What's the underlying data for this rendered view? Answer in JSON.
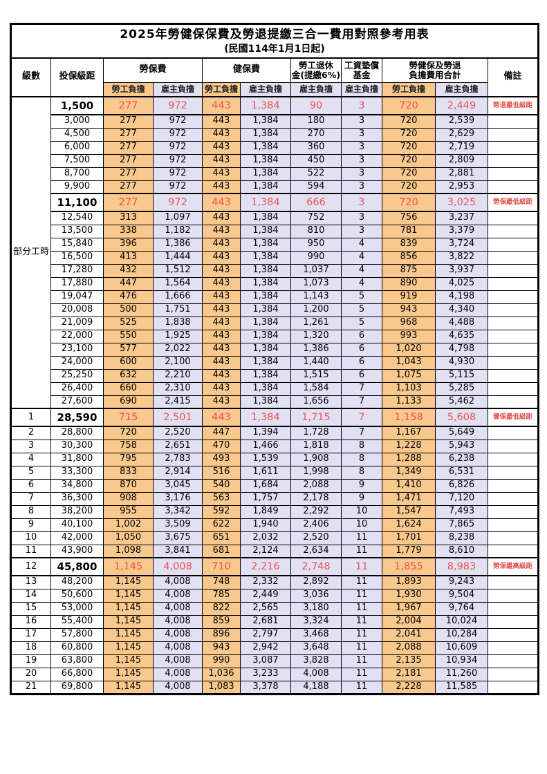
{
  "title": "2025年勞健保保費及勞退提繳三合一費用對照參考用表",
  "subtitle": "(民國114年1月1日起)",
  "columns": {
    "level": "級數",
    "salary": "投保級距",
    "labor_insurance": "勞保費",
    "health_insurance": "健保費",
    "pension_line1": "勞工退休",
    "pension_line2": "金(提繳6%)",
    "wage_fund_line1": "工資墊償",
    "wage_fund_line2": "基金",
    "total_line1": "勞健保及勞退",
    "total_line2": "負擔費用合計",
    "note": "備註",
    "employee_share": "勞工負擔",
    "employer_share": "雇主負擔"
  },
  "group_label": "部分工時",
  "colors": {
    "employee_bg": "#F8C88C",
    "employer_bg": "#E1E1F3",
    "highlight_text": "#EE5350",
    "note_text": "#E2524E"
  },
  "rows": [
    {
      "level": null,
      "salary": "1,500",
      "labor_emp": "277",
      "labor_er": "972",
      "health_emp": "443",
      "health_er": "1,384",
      "pension_er": "90",
      "fund_er": "3",
      "total_emp": "720",
      "total_er": "2,449",
      "note": "勞退最低級距",
      "highlight": true
    },
    {
      "level": null,
      "salary": "3,000",
      "labor_emp": "277",
      "labor_er": "972",
      "health_emp": "443",
      "health_er": "1,384",
      "pension_er": "180",
      "fund_er": "3",
      "total_emp": "720",
      "total_er": "2,539",
      "note": "",
      "highlight": false
    },
    {
      "level": null,
      "salary": "4,500",
      "labor_emp": "277",
      "labor_er": "972",
      "health_emp": "443",
      "health_er": "1,384",
      "pension_er": "270",
      "fund_er": "3",
      "total_emp": "720",
      "total_er": "2,629",
      "note": "",
      "highlight": false
    },
    {
      "level": null,
      "salary": "6,000",
      "labor_emp": "277",
      "labor_er": "972",
      "health_emp": "443",
      "health_er": "1,384",
      "pension_er": "360",
      "fund_er": "3",
      "total_emp": "720",
      "total_er": "2,719",
      "note": "",
      "highlight": false
    },
    {
      "level": null,
      "salary": "7,500",
      "labor_emp": "277",
      "labor_er": "972",
      "health_emp": "443",
      "health_er": "1,384",
      "pension_er": "450",
      "fund_er": "3",
      "total_emp": "720",
      "total_er": "2,809",
      "note": "",
      "highlight": false
    },
    {
      "level": null,
      "salary": "8,700",
      "labor_emp": "277",
      "labor_er": "972",
      "health_emp": "443",
      "health_er": "1,384",
      "pension_er": "522",
      "fund_er": "3",
      "total_emp": "720",
      "total_er": "2,881",
      "note": "",
      "highlight": false
    },
    {
      "level": null,
      "salary": "9,900",
      "labor_emp": "277",
      "labor_er": "972",
      "health_emp": "443",
      "health_er": "1,384",
      "pension_er": "594",
      "fund_er": "3",
      "total_emp": "720",
      "total_er": "2,953",
      "note": "",
      "highlight": false
    },
    {
      "level": null,
      "salary": "11,100",
      "labor_emp": "277",
      "labor_er": "972",
      "health_emp": "443",
      "health_er": "1,384",
      "pension_er": "666",
      "fund_er": "3",
      "total_emp": "720",
      "total_er": "3,025",
      "note": "勞保最低級距",
      "highlight": true
    },
    {
      "level": null,
      "salary": "12,540",
      "labor_emp": "313",
      "labor_er": "1,097",
      "health_emp": "443",
      "health_er": "1,384",
      "pension_er": "752",
      "fund_er": "3",
      "total_emp": "756",
      "total_er": "3,237",
      "note": "",
      "highlight": false
    },
    {
      "level": null,
      "salary": "13,500",
      "labor_emp": "338",
      "labor_er": "1,182",
      "health_emp": "443",
      "health_er": "1,384",
      "pension_er": "810",
      "fund_er": "3",
      "total_emp": "781",
      "total_er": "3,379",
      "note": "",
      "highlight": false
    },
    {
      "level": null,
      "salary": "15,840",
      "labor_emp": "396",
      "labor_er": "1,386",
      "health_emp": "443",
      "health_er": "1,384",
      "pension_er": "950",
      "fund_er": "4",
      "total_emp": "839",
      "total_er": "3,724",
      "note": "",
      "highlight": false
    },
    {
      "level": null,
      "salary": "16,500",
      "labor_emp": "413",
      "labor_er": "1,444",
      "health_emp": "443",
      "health_er": "1,384",
      "pension_er": "990",
      "fund_er": "4",
      "total_emp": "856",
      "total_er": "3,822",
      "note": "",
      "highlight": false
    },
    {
      "level": null,
      "salary": "17,280",
      "labor_emp": "432",
      "labor_er": "1,512",
      "health_emp": "443",
      "health_er": "1,384",
      "pension_er": "1,037",
      "fund_er": "4",
      "total_emp": "875",
      "total_er": "3,937",
      "note": "",
      "highlight": false
    },
    {
      "level": null,
      "salary": "17,880",
      "labor_emp": "447",
      "labor_er": "1,564",
      "health_emp": "443",
      "health_er": "1,384",
      "pension_er": "1,073",
      "fund_er": "4",
      "total_emp": "890",
      "total_er": "4,025",
      "note": "",
      "highlight": false
    },
    {
      "level": null,
      "salary": "19,047",
      "labor_emp": "476",
      "labor_er": "1,666",
      "health_emp": "443",
      "health_er": "1,384",
      "pension_er": "1,143",
      "fund_er": "5",
      "total_emp": "919",
      "total_er": "4,198",
      "note": "",
      "highlight": false
    },
    {
      "level": null,
      "salary": "20,008",
      "labor_emp": "500",
      "labor_er": "1,751",
      "health_emp": "443",
      "health_er": "1,384",
      "pension_er": "1,200",
      "fund_er": "5",
      "total_emp": "943",
      "total_er": "4,340",
      "note": "",
      "highlight": false
    },
    {
      "level": null,
      "salary": "21,009",
      "labor_emp": "525",
      "labor_er": "1,838",
      "health_emp": "443",
      "health_er": "1,384",
      "pension_er": "1,261",
      "fund_er": "5",
      "total_emp": "968",
      "total_er": "4,488",
      "note": "",
      "highlight": false
    },
    {
      "level": null,
      "salary": "22,000",
      "labor_emp": "550",
      "labor_er": "1,925",
      "health_emp": "443",
      "health_er": "1,384",
      "pension_er": "1,320",
      "fund_er": "6",
      "total_emp": "993",
      "total_er": "4,635",
      "note": "",
      "highlight": false
    },
    {
      "level": null,
      "salary": "23,100",
      "labor_emp": "577",
      "labor_er": "2,022",
      "health_emp": "443",
      "health_er": "1,384",
      "pension_er": "1,386",
      "fund_er": "6",
      "total_emp": "1,020",
      "total_er": "4,798",
      "note": "",
      "highlight": false
    },
    {
      "level": null,
      "salary": "24,000",
      "labor_emp": "600",
      "labor_er": "2,100",
      "health_emp": "443",
      "health_er": "1,384",
      "pension_er": "1,440",
      "fund_er": "6",
      "total_emp": "1,043",
      "total_er": "4,930",
      "note": "",
      "highlight": false
    },
    {
      "level": null,
      "salary": "25,250",
      "labor_emp": "632",
      "labor_er": "2,210",
      "health_emp": "443",
      "health_er": "1,384",
      "pension_er": "1,515",
      "fund_er": "6",
      "total_emp": "1,075",
      "total_er": "5,115",
      "note": "",
      "highlight": false
    },
    {
      "level": null,
      "salary": "26,400",
      "labor_emp": "660",
      "labor_er": "2,310",
      "health_emp": "443",
      "health_er": "1,384",
      "pension_er": "1,584",
      "fund_er": "7",
      "total_emp": "1,103",
      "total_er": "5,285",
      "note": "",
      "highlight": false
    },
    {
      "level": null,
      "salary": "27,600",
      "labor_emp": "690",
      "labor_er": "2,415",
      "health_emp": "443",
      "health_er": "1,384",
      "pension_er": "1,656",
      "fund_er": "7",
      "total_emp": "1,133",
      "total_er": "5,462",
      "note": "",
      "highlight": false
    },
    {
      "level": "1",
      "salary": "28,590",
      "labor_emp": "715",
      "labor_er": "2,501",
      "health_emp": "443",
      "health_er": "1,384",
      "pension_er": "1,715",
      "fund_er": "7",
      "total_emp": "1,158",
      "total_er": "5,608",
      "note": "健保最低級距",
      "highlight": true
    },
    {
      "level": "2",
      "salary": "28,800",
      "labor_emp": "720",
      "labor_er": "2,520",
      "health_emp": "447",
      "health_er": "1,394",
      "pension_er": "1,728",
      "fund_er": "7",
      "total_emp": "1,167",
      "total_er": "5,649",
      "note": "",
      "highlight": false
    },
    {
      "level": "3",
      "salary": "30,300",
      "labor_emp": "758",
      "labor_er": "2,651",
      "health_emp": "470",
      "health_er": "1,466",
      "pension_er": "1,818",
      "fund_er": "8",
      "total_emp": "1,228",
      "total_er": "5,943",
      "note": "",
      "highlight": false
    },
    {
      "level": "4",
      "salary": "31,800",
      "labor_emp": "795",
      "labor_er": "2,783",
      "health_emp": "493",
      "health_er": "1,539",
      "pension_er": "1,908",
      "fund_er": "8",
      "total_emp": "1,288",
      "total_er": "6,238",
      "note": "",
      "highlight": false
    },
    {
      "level": "5",
      "salary": "33,300",
      "labor_emp": "833",
      "labor_er": "2,914",
      "health_emp": "516",
      "health_er": "1,611",
      "pension_er": "1,998",
      "fund_er": "8",
      "total_emp": "1,349",
      "total_er": "6,531",
      "note": "",
      "highlight": false
    },
    {
      "level": "6",
      "salary": "34,800",
      "labor_emp": "870",
      "labor_er": "3,045",
      "health_emp": "540",
      "health_er": "1,684",
      "pension_er": "2,088",
      "fund_er": "9",
      "total_emp": "1,410",
      "total_er": "6,826",
      "note": "",
      "highlight": false
    },
    {
      "level": "7",
      "salary": "36,300",
      "labor_emp": "908",
      "labor_er": "3,176",
      "health_emp": "563",
      "health_er": "1,757",
      "pension_er": "2,178",
      "fund_er": "9",
      "total_emp": "1,471",
      "total_er": "7,120",
      "note": "",
      "highlight": false
    },
    {
      "level": "8",
      "salary": "38,200",
      "labor_emp": "955",
      "labor_er": "3,342",
      "health_emp": "592",
      "health_er": "1,849",
      "pension_er": "2,292",
      "fund_er": "10",
      "total_emp": "1,547",
      "total_er": "7,493",
      "note": "",
      "highlight": false
    },
    {
      "level": "9",
      "salary": "40,100",
      "labor_emp": "1,002",
      "labor_er": "3,509",
      "health_emp": "622",
      "health_er": "1,940",
      "pension_er": "2,406",
      "fund_er": "10",
      "total_emp": "1,624",
      "total_er": "7,865",
      "note": "",
      "highlight": false
    },
    {
      "level": "10",
      "salary": "42,000",
      "labor_emp": "1,050",
      "labor_er": "3,675",
      "health_emp": "651",
      "health_er": "2,032",
      "pension_er": "2,520",
      "fund_er": "11",
      "total_emp": "1,701",
      "total_er": "8,238",
      "note": "",
      "highlight": false
    },
    {
      "level": "11",
      "salary": "43,900",
      "labor_emp": "1,098",
      "labor_er": "3,841",
      "health_emp": "681",
      "health_er": "2,124",
      "pension_er": "2,634",
      "fund_er": "11",
      "total_emp": "1,779",
      "total_er": "8,610",
      "note": "",
      "highlight": false
    },
    {
      "level": "12",
      "salary": "45,800",
      "labor_emp": "1,145",
      "labor_er": "4,008",
      "health_emp": "710",
      "health_er": "2,216",
      "pension_er": "2,748",
      "fund_er": "11",
      "total_emp": "1,855",
      "total_er": "8,983",
      "note": "勞保最高級距",
      "highlight": true
    },
    {
      "level": "13",
      "salary": "48,200",
      "labor_emp": "1,145",
      "labor_er": "4,008",
      "health_emp": "748",
      "health_er": "2,332",
      "pension_er": "2,892",
      "fund_er": "11",
      "total_emp": "1,893",
      "total_er": "9,243",
      "note": "",
      "highlight": false
    },
    {
      "level": "14",
      "salary": "50,600",
      "labor_emp": "1,145",
      "labor_er": "4,008",
      "health_emp": "785",
      "health_er": "2,449",
      "pension_er": "3,036",
      "fund_er": "11",
      "total_emp": "1,930",
      "total_er": "9,504",
      "note": "",
      "highlight": false
    },
    {
      "level": "15",
      "salary": "53,000",
      "labor_emp": "1,145",
      "labor_er": "4,008",
      "health_emp": "822",
      "health_er": "2,565",
      "pension_er": "3,180",
      "fund_er": "11",
      "total_emp": "1,967",
      "total_er": "9,764",
      "note": "",
      "highlight": false
    },
    {
      "level": "16",
      "salary": "55,400",
      "labor_emp": "1,145",
      "labor_er": "4,008",
      "health_emp": "859",
      "health_er": "2,681",
      "pension_er": "3,324",
      "fund_er": "11",
      "total_emp": "2,004",
      "total_er": "10,024",
      "note": "",
      "highlight": false
    },
    {
      "level": "17",
      "salary": "57,800",
      "labor_emp": "1,145",
      "labor_er": "4,008",
      "health_emp": "896",
      "health_er": "2,797",
      "pension_er": "3,468",
      "fund_er": "11",
      "total_emp": "2,041",
      "total_er": "10,284",
      "note": "",
      "highlight": false
    },
    {
      "level": "18",
      "salary": "60,800",
      "labor_emp": "1,145",
      "labor_er": "4,008",
      "health_emp": "943",
      "health_er": "2,942",
      "pension_er": "3,648",
      "fund_er": "11",
      "total_emp": "2,088",
      "total_er": "10,609",
      "note": "",
      "highlight": false
    },
    {
      "level": "19",
      "salary": "63,800",
      "labor_emp": "1,145",
      "labor_er": "4,008",
      "health_emp": "990",
      "health_er": "3,087",
      "pension_er": "3,828",
      "fund_er": "11",
      "total_emp": "2,135",
      "total_er": "10,934",
      "note": "",
      "highlight": false
    },
    {
      "level": "20",
      "salary": "66,800",
      "labor_emp": "1,145",
      "labor_er": "4,008",
      "health_emp": "1,036",
      "health_er": "3,233",
      "pension_er": "4,008",
      "fund_er": "11",
      "total_emp": "2,181",
      "total_er": "11,260",
      "note": "",
      "highlight": false
    },
    {
      "level": "21",
      "salary": "69,800",
      "labor_emp": "1,145",
      "labor_er": "4,008",
      "health_emp": "1,083",
      "health_er": "3,378",
      "pension_er": "4,188",
      "fund_er": "11",
      "total_emp": "2,228",
      "total_er": "11,585",
      "note": "",
      "highlight": false
    }
  ]
}
